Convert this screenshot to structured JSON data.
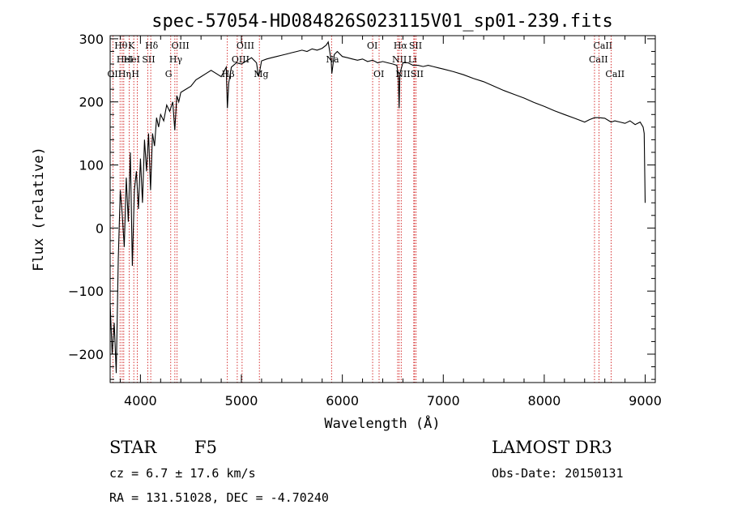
{
  "chart_data": {
    "type": "line",
    "title": "spec-57054-HD084826S023115V01_sp01-239.fits",
    "xlabel": "Wavelength (Å)",
    "ylabel": "Flux (relative)",
    "xlim": [
      3700,
      9100
    ],
    "ylim": [
      -245,
      305
    ],
    "xticks": [
      4000,
      5000,
      6000,
      7000,
      8000,
      9000
    ],
    "xtick_labels": [
      "4000",
      "5000",
      "6000",
      "7000",
      "8000",
      "9000"
    ],
    "yticks": [
      -200,
      -100,
      0,
      100,
      200,
      300
    ],
    "ytick_labels": [
      "−200",
      "−100",
      "0",
      "100",
      "200",
      "300"
    ],
    "series": [
      {
        "name": "flux",
        "x": [
          3700,
          3720,
          3740,
          3760,
          3780,
          3800,
          3820,
          3840,
          3860,
          3880,
          3900,
          3920,
          3940,
          3960,
          3980,
          4000,
          4020,
          4040,
          4060,
          4080,
          4100,
          4120,
          4140,
          4160,
          4180,
          4200,
          4230,
          4260,
          4290,
          4320,
          4340,
          4360,
          4380,
          4400,
          4450,
          4500,
          4550,
          4600,
          4650,
          4700,
          4750,
          4800,
          4850,
          4861,
          4875,
          4900,
          4950,
          5000,
          5050,
          5100,
          5150,
          5170,
          5183,
          5200,
          5250,
          5300,
          5350,
          5400,
          5450,
          5500,
          5550,
          5600,
          5650,
          5700,
          5750,
          5800,
          5840,
          5860,
          5890,
          5896,
          5920,
          5950,
          6000,
          6050,
          6100,
          6150,
          6200,
          6250,
          6300,
          6350,
          6400,
          6450,
          6500,
          6540,
          6555,
          6563,
          6570,
          6600,
          6650,
          6700,
          6750,
          6800,
          6850,
          6900,
          6950,
          7000,
          7100,
          7200,
          7300,
          7400,
          7500,
          7600,
          7700,
          7800,
          7900,
          8000,
          8100,
          8200,
          8300,
          8400,
          8450,
          8498,
          8542,
          8600,
          8662,
          8700,
          8750,
          8800,
          8850,
          8900,
          8950,
          8980,
          8990,
          9000
        ],
        "y": [
          -120,
          -200,
          -150,
          -230,
          -50,
          60,
          20,
          -30,
          80,
          10,
          120,
          -60,
          60,
          90,
          30,
          110,
          40,
          140,
          90,
          150,
          60,
          150,
          130,
          175,
          160,
          180,
          170,
          195,
          185,
          200,
          155,
          210,
          200,
          215,
          220,
          225,
          235,
          240,
          245,
          250,
          245,
          240,
          255,
          190,
          230,
          255,
          262,
          260,
          265,
          270,
          262,
          240,
          250,
          265,
          268,
          270,
          272,
          274,
          276,
          278,
          280,
          282,
          280,
          284,
          282,
          285,
          290,
          295,
          265,
          245,
          275,
          280,
          272,
          270,
          268,
          266,
          268,
          264,
          266,
          262,
          264,
          262,
          260,
          258,
          240,
          190,
          245,
          262,
          262,
          258,
          258,
          256,
          258,
          256,
          254,
          252,
          248,
          243,
          237,
          232,
          225,
          218,
          212,
          206,
          199,
          193,
          186,
          180,
          174,
          168,
          172,
          175,
          175,
          174,
          168,
          170,
          168,
          166,
          170,
          164,
          168,
          160,
          150,
          40
        ]
      }
    ],
    "spectral_lines": [
      {
        "wl": 3727,
        "label": "OII",
        "row": 2
      },
      {
        "wl": 3798,
        "label": "Hθ",
        "row": 0
      },
      {
        "wl": 3819,
        "label": "HeI",
        "row": 1
      },
      {
        "wl": 3835,
        "label": "Hη",
        "row": 2
      },
      {
        "wl": 3889,
        "label": "HeI",
        "row": 1
      },
      {
        "wl": 3934,
        "label": "K",
        "row": 0
      },
      {
        "wl": 3968,
        "label": "H",
        "row": 2
      },
      {
        "wl": 4072,
        "label": "SII",
        "row": 1
      },
      {
        "wl": 4102,
        "label": "Hδ",
        "row": 0
      },
      {
        "wl": 4300,
        "label": "G",
        "row": 2
      },
      {
        "wl": 4341,
        "label": "Hγ",
        "row": 1
      },
      {
        "wl": 4363,
        "label": "OIII",
        "row": 0
      },
      {
        "wl": 4861,
        "label": "Hβ",
        "row": 2
      },
      {
        "wl": 4959,
        "label": "OIII",
        "row": 1
      },
      {
        "wl": 5007,
        "label": "OIII",
        "row": 0
      },
      {
        "wl": 5178,
        "label": "Mg",
        "row": 2
      },
      {
        "wl": 5893,
        "label": "Na",
        "row": 1
      },
      {
        "wl": 6300,
        "label": "OI",
        "row": 0
      },
      {
        "wl": 6364,
        "label": "OI",
        "row": 2
      },
      {
        "wl": 6548,
        "label": "NII",
        "row": 1
      },
      {
        "wl": 6563,
        "label": "Hα",
        "row": 0
      },
      {
        "wl": 6583,
        "label": "NII",
        "row": 2
      },
      {
        "wl": 6708,
        "label": "Li",
        "row": 1
      },
      {
        "wl": 6716,
        "label": "SII",
        "row": 0
      },
      {
        "wl": 6731,
        "label": "SII",
        "row": 2
      },
      {
        "wl": 8498,
        "label": "CaII",
        "row": 1
      },
      {
        "wl": 8542,
        "label": "CaII",
        "row": 0
      },
      {
        "wl": 8662,
        "label": "CaII",
        "row": 2
      }
    ],
    "line_color": "#000000",
    "marker_color": "#cc0000"
  },
  "info": {
    "object_class": "STAR",
    "subclass": "F5",
    "survey": "LAMOST DR3",
    "redshift": "cz = 6.7 ± 17.6 km/s",
    "obs_date": "Obs-Date: 20150131",
    "coords": "RA = 131.51028, DEC =  -4.70240"
  }
}
